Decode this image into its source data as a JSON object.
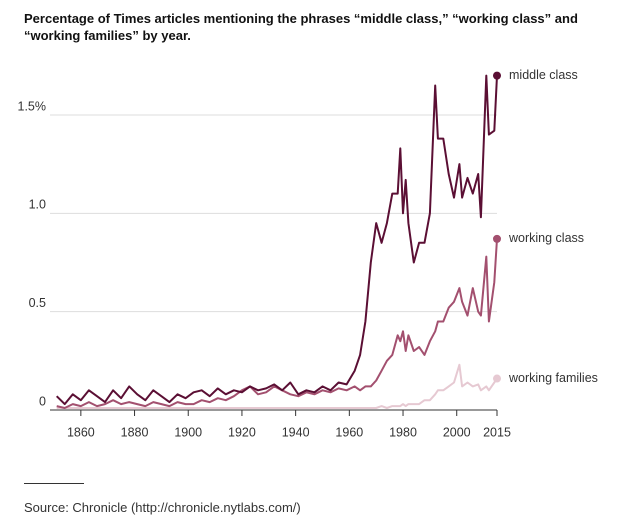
{
  "chart_data": {
    "type": "line",
    "title": "Percentage of Times articles mentioning the phrases “middle class,” “working class” and “working families” by year.",
    "source": "Source: Chronicle (http://chronicle.nytlabs.com/)",
    "x": [
      1851,
      1854,
      1857,
      1860,
      1863,
      1866,
      1869,
      1872,
      1875,
      1878,
      1881,
      1884,
      1887,
      1890,
      1893,
      1896,
      1899,
      1902,
      1905,
      1908,
      1911,
      1914,
      1917,
      1920,
      1923,
      1926,
      1929,
      1932,
      1935,
      1938,
      1941,
      1944,
      1947,
      1950,
      1953,
      1956,
      1959,
      1962,
      1964,
      1966,
      1968,
      1970,
      1972,
      1974,
      1976,
      1978,
      1979,
      1980,
      1981,
      1982,
      1984,
      1986,
      1988,
      1990,
      1992,
      1993,
      1995,
      1997,
      1999,
      2001,
      2002,
      2004,
      2006,
      2008,
      2009,
      2011,
      2012,
      2014,
      2015
    ],
    "series": [
      {
        "name": "middle class",
        "color": "#5b0f34",
        "values": [
          0.07,
          0.03,
          0.08,
          0.05,
          0.1,
          0.07,
          0.04,
          0.1,
          0.06,
          0.12,
          0.08,
          0.05,
          0.1,
          0.07,
          0.04,
          0.08,
          0.06,
          0.09,
          0.1,
          0.07,
          0.11,
          0.08,
          0.1,
          0.09,
          0.12,
          0.1,
          0.11,
          0.13,
          0.1,
          0.14,
          0.08,
          0.1,
          0.09,
          0.12,
          0.1,
          0.14,
          0.13,
          0.2,
          0.28,
          0.45,
          0.75,
          0.95,
          0.85,
          0.95,
          1.1,
          1.1,
          1.33,
          1.0,
          1.17,
          0.95,
          0.75,
          0.85,
          0.85,
          1.0,
          1.65,
          1.38,
          1.38,
          1.2,
          1.08,
          1.25,
          1.08,
          1.18,
          1.1,
          1.2,
          0.98,
          1.7,
          1.4,
          1.42,
          1.7
        ]
      },
      {
        "name": "working class",
        "color": "#a3506f",
        "values": [
          0.02,
          0.01,
          0.03,
          0.02,
          0.04,
          0.02,
          0.03,
          0.05,
          0.03,
          0.04,
          0.03,
          0.02,
          0.04,
          0.03,
          0.02,
          0.04,
          0.03,
          0.03,
          0.05,
          0.04,
          0.06,
          0.05,
          0.07,
          0.1,
          0.12,
          0.08,
          0.09,
          0.12,
          0.1,
          0.08,
          0.07,
          0.09,
          0.08,
          0.1,
          0.09,
          0.11,
          0.1,
          0.12,
          0.1,
          0.12,
          0.12,
          0.15,
          0.2,
          0.25,
          0.28,
          0.38,
          0.35,
          0.4,
          0.3,
          0.38,
          0.3,
          0.32,
          0.28,
          0.35,
          0.4,
          0.45,
          0.45,
          0.52,
          0.55,
          0.62,
          0.55,
          0.48,
          0.62,
          0.5,
          0.48,
          0.78,
          0.45,
          0.65,
          0.87
        ]
      },
      {
        "name": "working families",
        "color": "#e6c9d2",
        "values": [
          0.01,
          0.01,
          0.01,
          0.01,
          0.01,
          0.01,
          0.01,
          0.01,
          0.01,
          0.01,
          0.01,
          0.01,
          0.01,
          0.01,
          0.01,
          0.01,
          0.01,
          0.01,
          0.01,
          0.01,
          0.01,
          0.01,
          0.01,
          0.01,
          0.01,
          0.01,
          0.01,
          0.01,
          0.01,
          0.01,
          0.01,
          0.01,
          0.01,
          0.01,
          0.01,
          0.01,
          0.01,
          0.01,
          0.01,
          0.01,
          0.01,
          0.01,
          0.02,
          0.01,
          0.02,
          0.02,
          0.02,
          0.03,
          0.02,
          0.03,
          0.03,
          0.03,
          0.05,
          0.05,
          0.08,
          0.1,
          0.1,
          0.12,
          0.14,
          0.23,
          0.12,
          0.14,
          0.12,
          0.13,
          0.1,
          0.12,
          0.1,
          0.14,
          0.16
        ]
      }
    ],
    "xlim": [
      1850,
      2015
    ],
    "xticks": [
      1860,
      1880,
      1900,
      1920,
      1940,
      1960,
      1980,
      2000,
      2015
    ],
    "ylim": [
      0,
      1.75
    ],
    "yticks": [
      0,
      0.5,
      {
        "value": 1,
        "label": "1.0"
      },
      {
        "value": 1.5,
        "label": "1.5%"
      }
    ],
    "grid": true
  }
}
